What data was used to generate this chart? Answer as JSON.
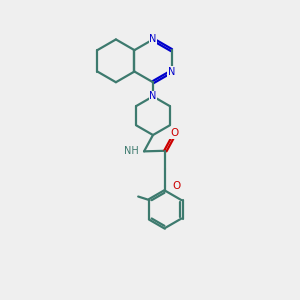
{
  "background_color": "#efefef",
  "bond_color": "#3d7a6e",
  "nitrogen_color": "#0000cc",
  "oxygen_color": "#cc0000",
  "bond_width": 1.6,
  "figsize": [
    3.0,
    3.0
  ],
  "dpi": 100,
  "xlim": [
    2.8,
    7.2
  ],
  "ylim": [
    1.5,
    11.5
  ]
}
